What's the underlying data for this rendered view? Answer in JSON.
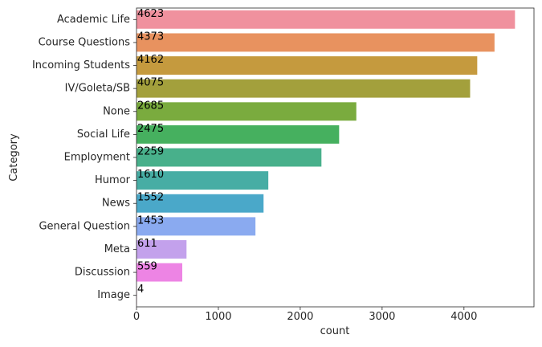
{
  "chart_data": {
    "type": "bar",
    "orientation": "horizontal",
    "xlabel": "count",
    "ylabel": "Category",
    "xlim": [
      0,
      4855
    ],
    "xticks": [
      0,
      1000,
      2000,
      3000,
      4000
    ],
    "xtick_labels": [
      "0",
      "1000",
      "2000",
      "3000",
      "4000"
    ],
    "grid": false,
    "categories": [
      "Academic Life",
      "Course Questions",
      "Incoming Students",
      "IV/Goleta/SB",
      "None",
      "Social Life",
      "Employment",
      "Humor",
      "News",
      "General Question",
      "Meta",
      "Discussion",
      "Image"
    ],
    "values": [
      4623,
      4373,
      4162,
      4075,
      2685,
      2475,
      2259,
      1610,
      1552,
      1453,
      611,
      559,
      4
    ],
    "value_labels": [
      "4623",
      "4373",
      "4162",
      "4075",
      "2685",
      "2475",
      "2259",
      "1610",
      "1552",
      "1453",
      "611",
      "559",
      "4"
    ],
    "colors": [
      "#f0919e",
      "#e8925f",
      "#c59a3e",
      "#a3a03c",
      "#7aab3e",
      "#46b05f",
      "#48b08b",
      "#47ada4",
      "#4aa8c9",
      "#8aaaf0",
      "#c3a1ec",
      "#ed84e4",
      "#f089b9"
    ]
  }
}
